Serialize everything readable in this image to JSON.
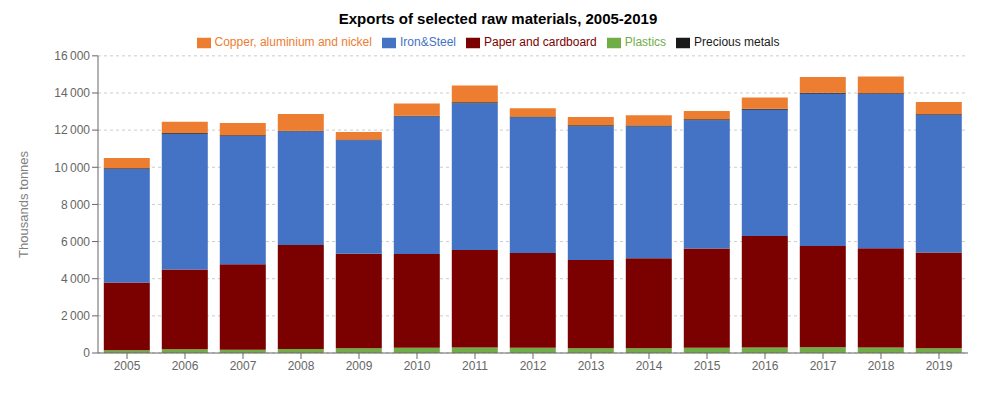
{
  "chart_data": {
    "type": "bar",
    "title": "Exports of selected raw materials, 2005-2019",
    "y_label": "Thousands tonnes",
    "categories": [
      "2005",
      "2006",
      "2007",
      "2008",
      "2009",
      "2010",
      "2011",
      "2012",
      "2013",
      "2014",
      "2015",
      "2016",
      "2017",
      "2018",
      "2019"
    ],
    "series": [
      {
        "name": "Plastics",
        "color": "#70ad47",
        "values": [
          150,
          200,
          180,
          220,
          250,
          280,
          300,
          280,
          260,
          250,
          280,
          300,
          310,
          290,
          260
        ]
      },
      {
        "name": "Paper and cardboard",
        "color": "#7b0000",
        "values": [
          3650,
          4300,
          4600,
          5600,
          5100,
          5050,
          5250,
          5100,
          4750,
          4850,
          5350,
          6000,
          5450,
          5350,
          5150
        ]
      },
      {
        "name": "Iron&Steel",
        "color": "#4472c4",
        "values": [
          6100,
          7300,
          6900,
          6100,
          6100,
          7400,
          7900,
          7300,
          7200,
          7100,
          6900,
          6800,
          8200,
          8300,
          7400
        ]
      },
      {
        "name": "Precious metals",
        "color": "#1a1a1a",
        "values": [
          50,
          50,
          50,
          50,
          50,
          50,
          50,
          50,
          50,
          50,
          50,
          50,
          50,
          50,
          50
        ]
      },
      {
        "name": "Copper, aluminium and nickel",
        "color": "#ed7d31",
        "values": [
          550,
          600,
          650,
          900,
          400,
          650,
          900,
          450,
          450,
          550,
          450,
          600,
          850,
          900,
          650
        ]
      }
    ],
    "stacked": true,
    "ylim": [
      0,
      16000
    ],
    "yticks": [
      0,
      {
        "value": 2000,
        "label": "2 000"
      },
      {
        "value": 4000,
        "label": "4 000"
      },
      {
        "value": 6000,
        "label": "6 000"
      },
      {
        "value": 8000,
        "label": "8 000"
      },
      {
        "value": 10000,
        "label": "10 000"
      },
      {
        "value": 12000,
        "label": "12 000"
      },
      {
        "value": 14000,
        "label": "14 000"
      },
      {
        "value": 16000,
        "label": "16 000"
      }
    ],
    "grid": true,
    "legend": "top"
  }
}
